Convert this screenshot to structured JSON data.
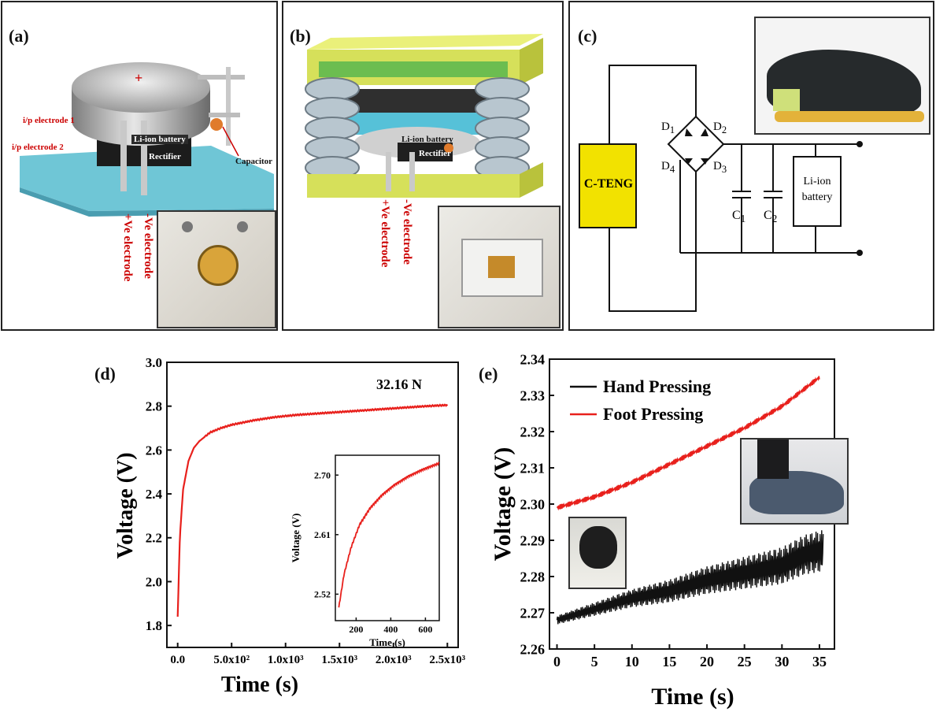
{
  "panel_a": {
    "label": "(a)",
    "plus_sign": "+",
    "battery": "Li-ion battery",
    "rectifier": "Rectifier",
    "capacitor": "Capacitor",
    "ip_electrode_1": "i/p electrode  1",
    "ip_electrode_2": "i/p electrode  2",
    "pos_electrode": "+Ve  electrode",
    "neg_electrode": "-Ve  electrode"
  },
  "panel_b": {
    "label": "(b)",
    "battery": "Li-ion battery",
    "rectifier": "Rectifier",
    "pos_electrode": "+Ve  electrode",
    "neg_electrode": "-Ve  electrode"
  },
  "panel_c": {
    "label": "(c)",
    "teng": "C-TENG",
    "d1": "D",
    "d1_sub": "1",
    "d2": "D",
    "d2_sub": "2",
    "d3": "D",
    "d3_sub": "3",
    "d4": "D",
    "d4_sub": "4",
    "c1": "C",
    "c1_sub": "1",
    "c2": "C",
    "c2_sub": "2",
    "battery_line1": "Li-ion",
    "battery_line2": "battery"
  },
  "chart_data": [
    {
      "panel": "(d)",
      "type": "line",
      "annotation": "32.16 N",
      "xlabel": "Time (s)",
      "ylabel": "Voltage (V)",
      "xlim": [
        -100,
        2600
      ],
      "ylim": [
        1.7,
        3.0
      ],
      "xticks": [
        "0.0",
        "5.0x10²",
        "1.0x10³",
        "1.5x10³",
        "2.0x10³",
        "2.5x10³"
      ],
      "yticks": [
        "1.8",
        "2.0",
        "2.2",
        "2.4",
        "2.6",
        "2.8",
        "3.0"
      ],
      "series": [
        {
          "color": "#e8201c",
          "x": [
            0,
            20,
            50,
            100,
            150,
            200,
            300,
            400,
            500,
            700,
            900,
            1100,
            1400,
            1700,
            2000,
            2300,
            2500
          ],
          "y": [
            1.84,
            2.2,
            2.42,
            2.55,
            2.61,
            2.64,
            2.68,
            2.7,
            2.715,
            2.735,
            2.75,
            2.76,
            2.77,
            2.78,
            2.79,
            2.8,
            2.805
          ]
        }
      ],
      "inset": {
        "type": "line",
        "xlabel": "Time (s)",
        "ylabel": "Voltage (V)",
        "xlim": [
          80,
          680
        ],
        "ylim": [
          2.48,
          2.73
        ],
        "xticks": [
          "200",
          "400",
          "600"
        ],
        "yticks": [
          "2.52",
          "2.61",
          "2.70"
        ],
        "series": [
          {
            "color": "#e8201c",
            "x": [
              100,
              130,
              170,
              220,
              280,
              350,
              420,
              500,
              580,
              660,
              680
            ],
            "y": [
              2.5,
              2.55,
              2.59,
              2.625,
              2.65,
              2.67,
              2.685,
              2.698,
              2.708,
              2.716,
              2.718
            ]
          }
        ]
      }
    },
    {
      "panel": "(e)",
      "type": "line",
      "xlabel": "Time (s)",
      "ylabel": "Voltage (V)",
      "xlim": [
        -1,
        37
      ],
      "ylim": [
        2.26,
        2.34
      ],
      "xticks": [
        "0",
        "5",
        "10",
        "15",
        "20",
        "25",
        "30",
        "35"
      ],
      "yticks": [
        "2.26",
        "2.27",
        "2.28",
        "2.29",
        "2.30",
        "2.31",
        "2.32",
        "2.33",
        "2.34"
      ],
      "legend_position": "top-left",
      "series": [
        {
          "name": "Hand Pressing",
          "color": "#111111",
          "x": [
            0,
            5,
            10,
            15,
            20,
            25,
            30,
            33,
            35
          ],
          "y": [
            2.268,
            2.271,
            2.274,
            2.276,
            2.279,
            2.281,
            2.283,
            2.286,
            2.287
          ]
        },
        {
          "name": "Foot Pressing",
          "color": "#e8201c",
          "x": [
            0,
            5,
            10,
            15,
            20,
            25,
            30,
            35
          ],
          "y": [
            2.299,
            2.302,
            2.306,
            2.311,
            2.316,
            2.321,
            2.327,
            2.335
          ]
        }
      ]
    }
  ]
}
